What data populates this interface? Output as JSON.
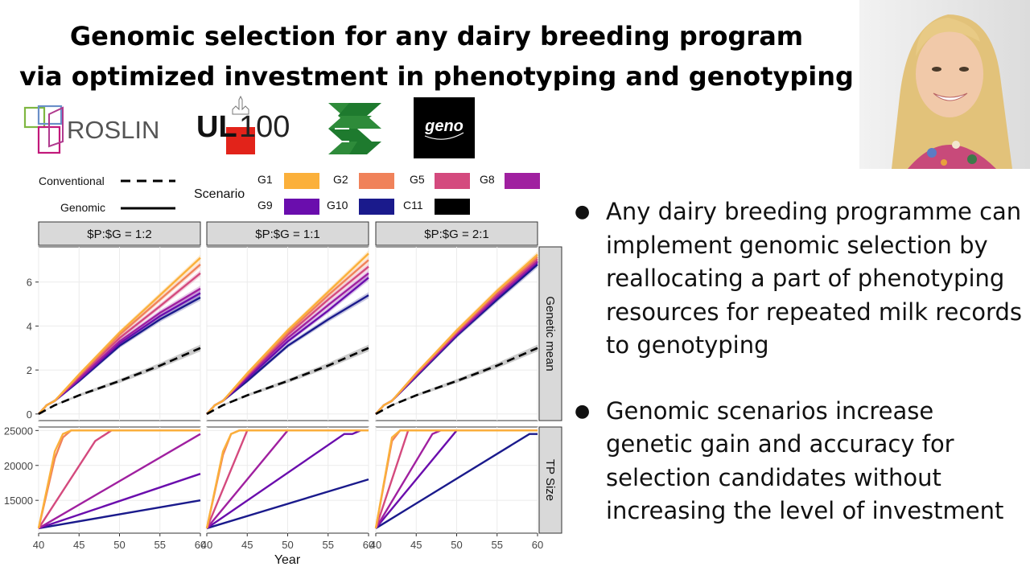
{
  "title": {
    "line1": "Genomic selection for any dairy breeding program",
    "line2": "via optimized investment in phenotyping and genotyping"
  },
  "logos": {
    "roslin": "ROSLIN",
    "ul": "UL",
    "ul_number": "100",
    "geno": "geno"
  },
  "bullets": [
    "Any dairy breeding programme can implement genomic selection by reallocating a part of phenotyping resources for repeated milk records to genotyping",
    "Genomic scenarios increase genetic gain and accuracy for selection  candidates without increasing the level of investment"
  ],
  "chart_data": {
    "type": "line",
    "legend": {
      "linetype": [
        {
          "name": "Conventional",
          "style": "dashed"
        },
        {
          "name": "Genomic",
          "style": "solid"
        }
      ],
      "scenario_title": "Scenario",
      "scenarios": [
        {
          "name": "G1",
          "color": "#FBB03B"
        },
        {
          "name": "G2",
          "color": "#F0825A"
        },
        {
          "name": "G5",
          "color": "#D44A7E"
        },
        {
          "name": "G8",
          "color": "#A020A0"
        },
        {
          "name": "G9",
          "color": "#6A0DAD"
        },
        {
          "name": "G10",
          "color": "#1A1A8C"
        },
        {
          "name": "C11",
          "color": "#000000"
        }
      ]
    },
    "panels": [
      "$P:$G = 1:2",
      "$P:$G = 1:1",
      "$P:$G = 2:1"
    ],
    "rows": [
      "Genetic mean",
      "TP Size"
    ],
    "xlabel": "Year",
    "xlim": [
      40,
      60
    ],
    "xticks": [
      40,
      45,
      50,
      55,
      60
    ],
    "genetic_mean": {
      "ylim": [
        -0.3,
        7.6
      ],
      "yticks": [
        0,
        2,
        4,
        6
      ],
      "conventional": {
        "name": "C11",
        "x": [
          40,
          42,
          45,
          50,
          55,
          60
        ],
        "y": [
          0,
          0.4,
          0.85,
          1.5,
          2.2,
          3.0
        ]
      },
      "panels": [
        {
          "x": [
            40,
            41,
            42,
            45,
            50,
            55,
            60
          ],
          "series": [
            {
              "name": "G1",
              "y": [
                0,
                0.4,
                0.6,
                1.8,
                3.7,
                5.4,
                7.1
              ]
            },
            {
              "name": "G2",
              "y": [
                0,
                0.4,
                0.6,
                1.75,
                3.6,
                5.2,
                6.8
              ]
            },
            {
              "name": "G5",
              "y": [
                0,
                0.4,
                0.6,
                1.7,
                3.45,
                4.9,
                6.4
              ]
            },
            {
              "name": "G8",
              "y": [
                0,
                0.4,
                0.6,
                1.6,
                3.3,
                4.6,
                5.7
              ]
            },
            {
              "name": "G9",
              "y": [
                0,
                0.4,
                0.6,
                1.55,
                3.2,
                4.45,
                5.5
              ]
            },
            {
              "name": "G10",
              "y": [
                0,
                0.4,
                0.6,
                1.5,
                3.1,
                4.3,
                5.3
              ]
            }
          ]
        },
        {
          "x": [
            40,
            41,
            42,
            45,
            50,
            55,
            60
          ],
          "series": [
            {
              "name": "G1",
              "y": [
                0,
                0.4,
                0.6,
                1.85,
                3.8,
                5.55,
                7.3
              ]
            },
            {
              "name": "G2",
              "y": [
                0,
                0.4,
                0.6,
                1.8,
                3.7,
                5.4,
                7.0
              ]
            },
            {
              "name": "G5",
              "y": [
                0,
                0.4,
                0.6,
                1.75,
                3.6,
                5.2,
                6.7
              ]
            },
            {
              "name": "G8",
              "y": [
                0,
                0.4,
                0.6,
                1.7,
                3.45,
                4.95,
                6.4
              ]
            },
            {
              "name": "G9",
              "y": [
                0,
                0.4,
                0.6,
                1.6,
                3.3,
                4.7,
                6.2
              ]
            },
            {
              "name": "G10",
              "y": [
                0,
                0.4,
                0.6,
                1.5,
                3.1,
                4.3,
                5.4
              ]
            }
          ]
        },
        {
          "x": [
            40,
            41,
            42,
            45,
            50,
            55,
            60
          ],
          "series": [
            {
              "name": "G1",
              "y": [
                0,
                0.4,
                0.6,
                1.85,
                3.8,
                5.6,
                7.25
              ]
            },
            {
              "name": "G2",
              "y": [
                0,
                0.4,
                0.6,
                1.85,
                3.75,
                5.55,
                7.15
              ]
            },
            {
              "name": "G5",
              "y": [
                0,
                0.4,
                0.6,
                1.8,
                3.7,
                5.45,
                7.05
              ]
            },
            {
              "name": "G8",
              "y": [
                0,
                0.4,
                0.6,
                1.75,
                3.65,
                5.35,
                6.95
              ]
            },
            {
              "name": "G9",
              "y": [
                0,
                0.4,
                0.6,
                1.75,
                3.6,
                5.3,
                6.9
              ]
            },
            {
              "name": "G10",
              "y": [
                0,
                0.4,
                0.6,
                1.7,
                3.55,
                5.2,
                6.8
              ]
            }
          ]
        }
      ]
    },
    "tp_size": {
      "ylim": [
        10300,
        25500
      ],
      "yticks": [
        15000,
        20000,
        25000
      ],
      "panels": [
        {
          "series": [
            {
              "name": "G1",
              "x": [
                40,
                42,
                43,
                44,
                60
              ],
              "y": [
                11000,
                22000,
                24500,
                25000,
                25000
              ]
            },
            {
              "name": "G2",
              "x": [
                40,
                42,
                43,
                44,
                60
              ],
              "y": [
                11000,
                21000,
                24000,
                25000,
                25000
              ]
            },
            {
              "name": "G5",
              "x": [
                40,
                47,
                49,
                60
              ],
              "y": [
                11000,
                23500,
                25000,
                25000
              ]
            },
            {
              "name": "G8",
              "x": [
                40,
                60
              ],
              "y": [
                11000,
                24500
              ]
            },
            {
              "name": "G9",
              "x": [
                40,
                60
              ],
              "y": [
                11000,
                18800
              ]
            },
            {
              "name": "G10",
              "x": [
                40,
                60
              ],
              "y": [
                11000,
                15000
              ]
            }
          ]
        },
        {
          "series": [
            {
              "name": "G1",
              "x": [
                40,
                42,
                43,
                44,
                60
              ],
              "y": [
                11000,
                22000,
                24500,
                25000,
                25000
              ]
            },
            {
              "name": "G2",
              "x": [
                40,
                42,
                43,
                44,
                60
              ],
              "y": [
                11000,
                21500,
                24500,
                25000,
                25000
              ]
            },
            {
              "name": "G5",
              "x": [
                40,
                45,
                60
              ],
              "y": [
                11000,
                25000,
                25000
              ]
            },
            {
              "name": "G8",
              "x": [
                40,
                50,
                60
              ],
              "y": [
                11000,
                25000,
                25000
              ]
            },
            {
              "name": "G9",
              "x": [
                40,
                57,
                58,
                59,
                60
              ],
              "y": [
                11000,
                24500,
                24500,
                25000,
                25000
              ]
            },
            {
              "name": "G10",
              "x": [
                40,
                60
              ],
              "y": [
                11000,
                18000
              ]
            }
          ]
        },
        {
          "series": [
            {
              "name": "G1",
              "x": [
                40,
                42,
                43,
                60
              ],
              "y": [
                11000,
                24000,
                25000,
                25000
              ]
            },
            {
              "name": "G2",
              "x": [
                40,
                42,
                43,
                60
              ],
              "y": [
                11000,
                23500,
                25000,
                25000
              ]
            },
            {
              "name": "G5",
              "x": [
                40,
                44,
                60
              ],
              "y": [
                11000,
                25000,
                25000
              ]
            },
            {
              "name": "G8",
              "x": [
                40,
                47,
                48,
                60
              ],
              "y": [
                11000,
                24500,
                25000,
                25000
              ]
            },
            {
              "name": "G9",
              "x": [
                40,
                50,
                51,
                60
              ],
              "y": [
                11000,
                25000,
                25000,
                25000
              ]
            },
            {
              "name": "G10",
              "x": [
                40,
                59,
                60
              ],
              "y": [
                11000,
                24500,
                24500
              ]
            }
          ]
        }
      ]
    }
  }
}
